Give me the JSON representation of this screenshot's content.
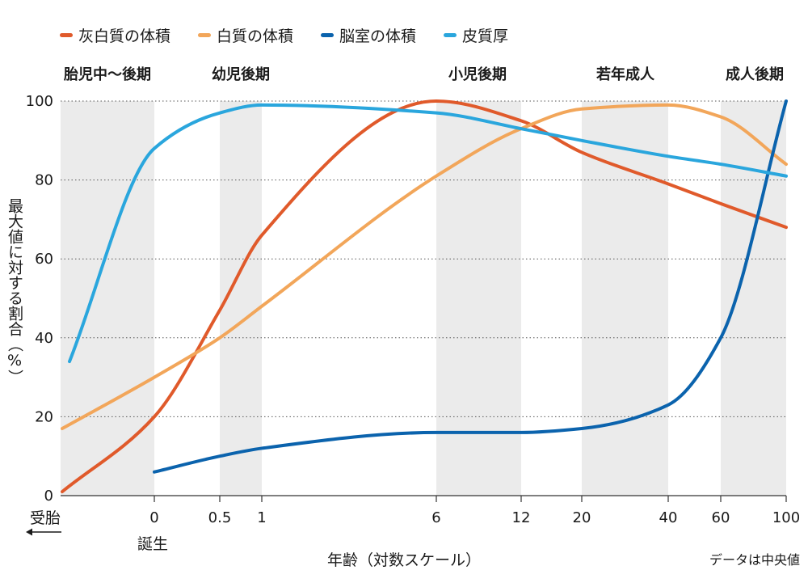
{
  "legend": [
    {
      "label": "灰白質の体積",
      "color": "#e05a2b"
    },
    {
      "label": "白質の体積",
      "color": "#f2a65a"
    },
    {
      "label": "脳室の体積",
      "color": "#0b63ad"
    },
    {
      "label": "皮質厚",
      "color": "#2aa6dd"
    }
  ],
  "stages": [
    "胎児中～後期",
    "幼児後期",
    "小児後期",
    "若年成人",
    "成人後期"
  ],
  "annotations": {
    "fertilization": "受胎",
    "birth": "誕生",
    "data_note": "データは中央値"
  },
  "chart_data": {
    "type": "line",
    "xlabel": "年齢（対数スケール）",
    "ylabel": "最大値に対する割合（%）",
    "x_scale": "log",
    "x_ticks": [
      "0",
      "0.5",
      "1",
      "6",
      "12",
      "20",
      "40",
      "60",
      "100"
    ],
    "ylim": [
      0,
      100
    ],
    "y_ticks": [
      "0",
      "20",
      "40",
      "60",
      "80",
      "100"
    ],
    "grid": "horizontal dotted",
    "legend_position": "top",
    "stage_bands": [
      {
        "label": "胎児中～後期",
        "from": "受胎",
        "to": "0"
      },
      {
        "label": "幼児後期",
        "from": "0.5",
        "to": "1"
      },
      {
        "label": "小児後期",
        "from": "6",
        "to": "12"
      },
      {
        "label": "若年成人",
        "from": "20",
        "to": "40"
      },
      {
        "label": "成人後期",
        "from": "60",
        "to": "100"
      }
    ],
    "series": [
      {
        "name": "灰白質の体積",
        "color": "#e05a2b",
        "points": [
          [
            "受胎",
            1
          ],
          [
            "0",
            20
          ],
          [
            "0.5",
            47
          ],
          [
            "1",
            66
          ],
          [
            "6",
            100
          ],
          [
            "12",
            95
          ],
          [
            "20",
            87
          ],
          [
            "40",
            79
          ],
          [
            "60",
            74
          ],
          [
            "100",
            68
          ]
        ]
      },
      {
        "name": "白質の体積",
        "color": "#f2a65a",
        "points": [
          [
            "受胎",
            17
          ],
          [
            "0",
            30
          ],
          [
            "0.5",
            40
          ],
          [
            "1",
            48
          ],
          [
            "6",
            81
          ],
          [
            "12",
            93
          ],
          [
            "20",
            98
          ],
          [
            "40",
            99
          ],
          [
            "60",
            96
          ],
          [
            "100",
            84
          ]
        ]
      },
      {
        "name": "脳室の体積",
        "color": "#0b63ad",
        "points": [
          [
            "0",
            6
          ],
          [
            "0.5",
            10
          ],
          [
            "1",
            12
          ],
          [
            "6",
            16
          ],
          [
            "12",
            16
          ],
          [
            "20",
            17
          ],
          [
            "40",
            23
          ],
          [
            "60",
            40
          ],
          [
            "100",
            100
          ]
        ]
      },
      {
        "name": "皮質厚",
        "color": "#2aa6dd",
        "points": [
          [
            "受胎",
            34
          ],
          [
            "0",
            88
          ],
          [
            "0.5",
            97
          ],
          [
            "1",
            99
          ],
          [
            "6",
            97
          ],
          [
            "12",
            93
          ],
          [
            "20",
            90
          ],
          [
            "40",
            86
          ],
          [
            "60",
            84
          ],
          [
            "100",
            81
          ]
        ]
      }
    ]
  }
}
